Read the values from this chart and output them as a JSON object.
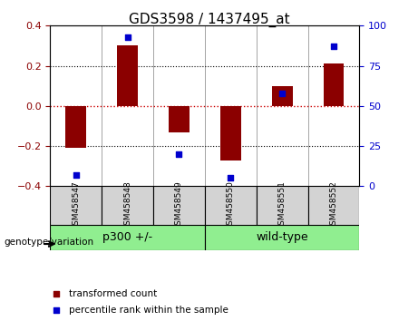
{
  "title": "GDS3598 / 1437495_at",
  "samples": [
    "GSM458547",
    "GSM458548",
    "GSM458549",
    "GSM458550",
    "GSM458551",
    "GSM458552"
  ],
  "transformed_count": [
    -0.21,
    0.3,
    -0.13,
    -0.27,
    0.1,
    0.21
  ],
  "percentile_rank": [
    7,
    93,
    20,
    5,
    58,
    87
  ],
  "groups": [
    {
      "label": "p300 +/-",
      "samples": [
        0,
        1,
        2
      ],
      "color": "#90EE90"
    },
    {
      "label": "wild-type",
      "samples": [
        3,
        4,
        5
      ],
      "color": "#90EE90"
    }
  ],
  "group_bg_color": "#90EE90",
  "sample_box_color": "#d3d3d3",
  "bar_color": "#8B0000",
  "dot_color": "#0000CD",
  "ylim_left": [
    -0.4,
    0.4
  ],
  "ylim_right": [
    0,
    100
  ],
  "yticks_left": [
    -0.4,
    -0.2,
    0,
    0.2,
    0.4
  ],
  "yticks_right": [
    0,
    25,
    50,
    75,
    100
  ],
  "ylabel_left_color": "#8B0000",
  "ylabel_right_color": "#0000CD",
  "hline_color": "#CC0000",
  "dotted_line_color": "#000000",
  "legend_bar_label": "transformed count",
  "legend_dot_label": "percentile rank within the sample",
  "genotype_label": "genotype/variation",
  "bar_width": 0.4
}
